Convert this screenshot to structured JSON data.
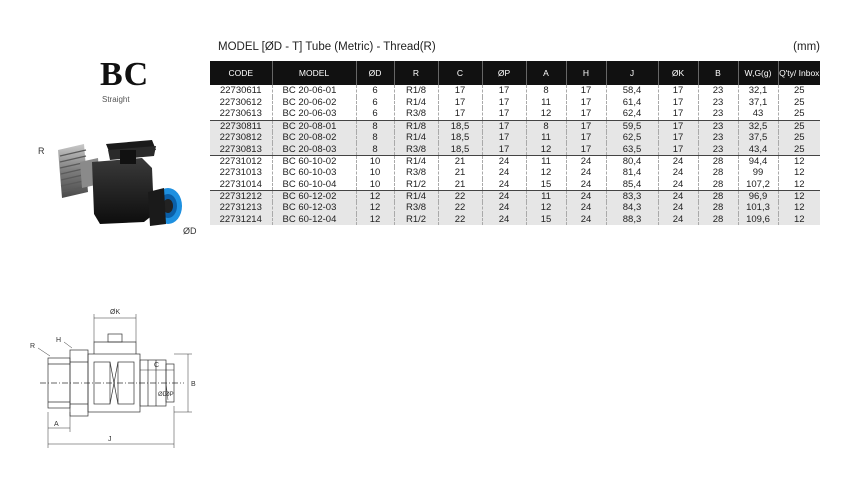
{
  "brand": {
    "title": "BC",
    "subtitle": "Straight"
  },
  "photo_labels": {
    "r": "R",
    "d": "ØD"
  },
  "table": {
    "title": "MODEL [ØD - T]  Tube (Metric) - Thread(R)",
    "unit": "(mm)",
    "columns": [
      "CODE",
      "MODEL",
      "ØD",
      "R",
      "C",
      "ØP",
      "A",
      "H",
      "J",
      "ØK",
      "B",
      "W,G(g)",
      "Q'ty/ Inbox"
    ],
    "rows": [
      [
        "22730611",
        "BC 20-06-01",
        "6",
        "R1/8",
        "17",
        "17",
        "8",
        "17",
        "58,4",
        "17",
        "23",
        "32,1",
        "25"
      ],
      [
        "22730612",
        "BC 20-06-02",
        "6",
        "R1/4",
        "17",
        "17",
        "11",
        "17",
        "61,4",
        "17",
        "23",
        "37,1",
        "25"
      ],
      [
        "22730613",
        "BC 20-06-03",
        "6",
        "R3/8",
        "17",
        "17",
        "12",
        "17",
        "62,4",
        "17",
        "23",
        "43",
        "25"
      ],
      [
        "22730811",
        "BC 20-08-01",
        "8",
        "R1/8",
        "18,5",
        "17",
        "8",
        "17",
        "59,5",
        "17",
        "23",
        "32,5",
        "25"
      ],
      [
        "22730812",
        "BC 20-08-02",
        "8",
        "R1/4",
        "18,5",
        "17",
        "11",
        "17",
        "62,5",
        "17",
        "23",
        "37,5",
        "25"
      ],
      [
        "22730813",
        "BC 20-08-03",
        "8",
        "R3/8",
        "18,5",
        "17",
        "12",
        "17",
        "63,5",
        "17",
        "23",
        "43,4",
        "25"
      ],
      [
        "22731012",
        "BC 60-10-02",
        "10",
        "R1/4",
        "21",
        "24",
        "11",
        "24",
        "80,4",
        "24",
        "28",
        "94,4",
        "12"
      ],
      [
        "22731013",
        "BC 60-10-03",
        "10",
        "R3/8",
        "21",
        "24",
        "12",
        "24",
        "81,4",
        "24",
        "28",
        "99",
        "12"
      ],
      [
        "22731014",
        "BC 60-10-04",
        "10",
        "R1/2",
        "21",
        "24",
        "15",
        "24",
        "85,4",
        "24",
        "28",
        "107,2",
        "12"
      ],
      [
        "22731212",
        "BC 60-12-02",
        "12",
        "R1/4",
        "22",
        "24",
        "11",
        "24",
        "83,3",
        "24",
        "28",
        "96,9",
        "12"
      ],
      [
        "22731213",
        "BC 60-12-03",
        "12",
        "R3/8",
        "22",
        "24",
        "12",
        "24",
        "84,3",
        "24",
        "28",
        "101,3",
        "12"
      ],
      [
        "22731214",
        "BC 60-12-04",
        "12",
        "R1/2",
        "22",
        "24",
        "15",
        "24",
        "88,3",
        "24",
        "28",
        "109,6",
        "12"
      ]
    ],
    "shaded_groups": [
      1,
      3
    ]
  },
  "drawing_labels": {
    "k": "ØK",
    "r": "R",
    "h": "H",
    "c": "C",
    "b": "B",
    "d": "ØD",
    "p": "ØP",
    "a": "A",
    "j": "J"
  },
  "colors": {
    "header_bg": "#111111",
    "shade": "#e6e6e6",
    "tube_blue": "#1e90e0",
    "body_black": "#1a1a1a",
    "thread_metal": "#8a8a8a"
  }
}
